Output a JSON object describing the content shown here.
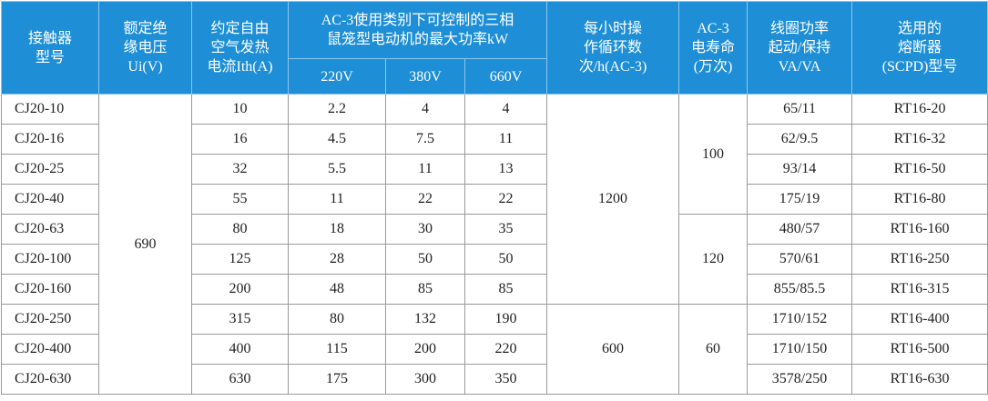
{
  "header": {
    "row1": [
      [
        "接触器",
        "型号"
      ],
      [
        "额定绝",
        "缘电压",
        "Ui(V)"
      ],
      [
        "约定自由",
        "空气发热",
        "电流Ith(A)"
      ],
      [
        "AC-3使用类别下可控制的三相",
        "鼠笼型电动机的最大功率kW"
      ],
      [
        "每小时操",
        "作循环数",
        "次/h(AC-3)"
      ],
      [
        "AC-3",
        "电寿命",
        "(万次)"
      ],
      [
        "线圈功率",
        "起动/保持",
        "VA/VA"
      ],
      [
        "选用的",
        "熔断器",
        "(SCPD)型号"
      ]
    ],
    "row2": [
      "220V",
      "380V",
      "660V"
    ]
  },
  "rows": [
    [
      "CJ20-10",
      "10",
      "2.2",
      "4",
      "4",
      "65/11",
      "RT16-20"
    ],
    [
      "CJ20-16",
      "16",
      "4.5",
      "7.5",
      "11",
      "62/9.5",
      "RT16-32"
    ],
    [
      "CJ20-25",
      "32",
      "5.5",
      "11",
      "13",
      "93/14",
      "RT16-50"
    ],
    [
      "CJ20-40",
      "55",
      "11",
      "22",
      "22",
      "175/19",
      "RT16-80"
    ],
    [
      "CJ20-63",
      "80",
      "18",
      "30",
      "35",
      "480/57",
      "RT16-160"
    ],
    [
      "CJ20-100",
      "125",
      "28",
      "50",
      "50",
      "570/61",
      "RT16-250"
    ],
    [
      "CJ20-160",
      "200",
      "48",
      "85",
      "85",
      "855/85.5",
      "RT16-315"
    ],
    [
      "CJ20-250",
      "315",
      "80",
      "132",
      "190",
      "1710/152",
      "RT16-400"
    ],
    [
      "CJ20-400",
      "400",
      "115",
      "200",
      "220",
      "1710/150",
      "RT16-500"
    ],
    [
      "CJ20-630",
      "630",
      "175",
      "300",
      "350",
      "3578/250",
      "RT16-630"
    ]
  ],
  "voltage": "690",
  "cycles": [
    "1200",
    "600"
  ],
  "life": [
    "100",
    "120",
    "60"
  ]
}
